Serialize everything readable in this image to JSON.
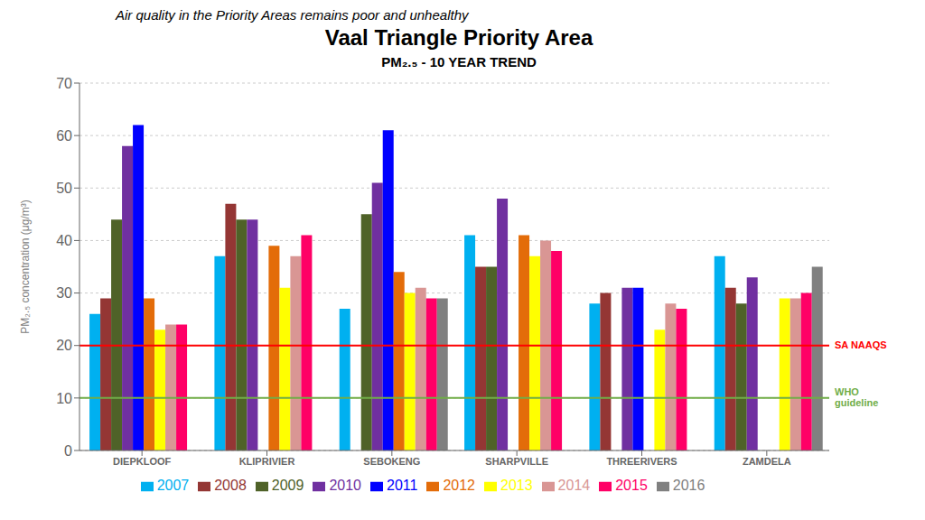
{
  "chart_data": {
    "type": "bar",
    "title": "Vaal Triangle Priority Area",
    "subtitle": "Air quality in the Priority Areas remains poor and unhealthy",
    "chart_title": "PM₂.₅ - 10 YEAR TREND",
    "ylabel": "PM₂.₅ concentration (μg/m³)",
    "categories": [
      "DIEPKLOOF",
      "KLIPRIVIER",
      "SEBOKENG",
      "SHARPVILLE",
      "THREERIVERS",
      "ZAMDELA"
    ],
    "series": [
      {
        "name": "2007",
        "color": "#00B0F0",
        "values": [
          26,
          37,
          27,
          41,
          28,
          37
        ]
      },
      {
        "name": "2008",
        "color": "#943634",
        "values": [
          29,
          47,
          0,
          35,
          30,
          31
        ]
      },
      {
        "name": "2009",
        "color": "#4F6228",
        "values": [
          44,
          44,
          45,
          35,
          0,
          28
        ]
      },
      {
        "name": "2010",
        "color": "#7030A0",
        "values": [
          58,
          44,
          51,
          48,
          31,
          33
        ]
      },
      {
        "name": "2011",
        "color": "#0000FF",
        "values": [
          62,
          0,
          61,
          0,
          31,
          0
        ]
      },
      {
        "name": "2012",
        "color": "#E36C09",
        "values": [
          29,
          39,
          34,
          41,
          0,
          0
        ]
      },
      {
        "name": "2013",
        "color": "#FFFF00",
        "values": [
          23,
          31,
          30,
          37,
          23,
          29
        ]
      },
      {
        "name": "2014",
        "color": "#D99694",
        "values": [
          24,
          37,
          31,
          40,
          28,
          29
        ]
      },
      {
        "name": "2015",
        "color": "#FF0066",
        "values": [
          24,
          41,
          29,
          38,
          27,
          30
        ]
      },
      {
        "name": "2016",
        "color": "#808080",
        "values": [
          0,
          0,
          29,
          0,
          0,
          35
        ]
      }
    ],
    "annotations": [
      {
        "text": "SA NAAQS",
        "y": 20,
        "color": "red"
      },
      {
        "text": "WHO\nguideline",
        "y": 10,
        "color": "#70AD47"
      }
    ],
    "ylim": [
      0,
      70
    ],
    "yticks": [
      0,
      10,
      20,
      30,
      40,
      50,
      60,
      70
    ],
    "grid": true,
    "legend": "bottom"
  }
}
